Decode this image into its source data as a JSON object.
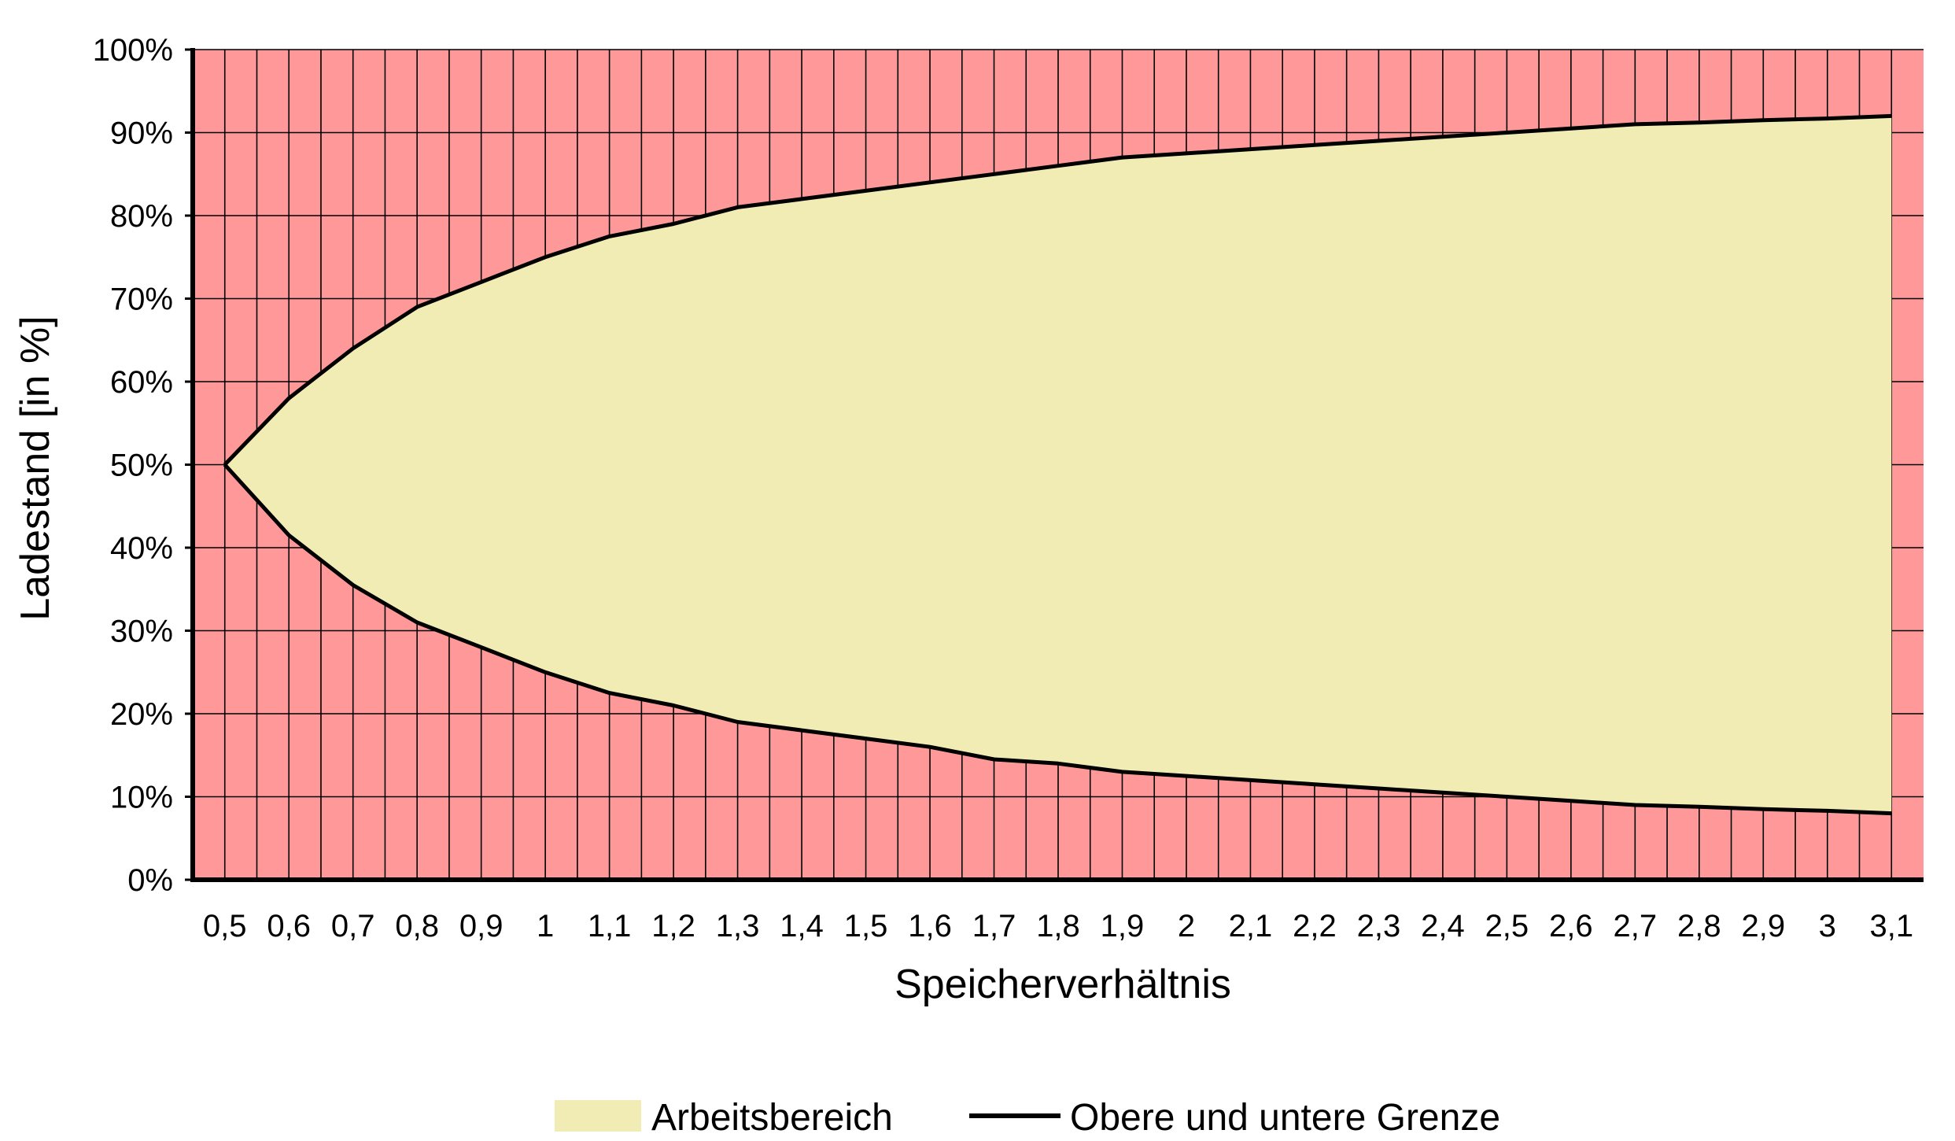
{
  "chart_data": {
    "type": "area",
    "xlabel": "Speicherverhältnis",
    "ylabel": "Ladestand [in %]",
    "x": [
      0.5,
      0.6,
      0.7,
      0.8,
      0.9,
      1.0,
      1.1,
      1.2,
      1.3,
      1.4,
      1.5,
      1.6,
      1.7,
      1.8,
      1.9,
      2.0,
      2.1,
      2.2,
      2.3,
      2.4,
      2.5,
      2.6,
      2.7,
      2.8,
      2.9,
      3.0,
      3.1
    ],
    "x_tick_labels": [
      "0,5",
      "0,6",
      "0,7",
      "0,8",
      "0,9",
      "1",
      "1,1",
      "1,2",
      "1,3",
      "1,4",
      "1,5",
      "1,6",
      "1,7",
      "1,8",
      "1,9",
      "2",
      "2,1",
      "2,2",
      "2,3",
      "2,4",
      "2,5",
      "2,6",
      "2,7",
      "2,8",
      "2,9",
      "3",
      "3,1"
    ],
    "y_tick_labels": [
      "0%",
      "10%",
      "20%",
      "30%",
      "40%",
      "50%",
      "60%",
      "70%",
      "80%",
      "90%",
      "100%"
    ],
    "ylim": [
      0,
      100
    ],
    "series": [
      {
        "name": "Arbeitsbereich",
        "color": "#F0ECB4",
        "upper": [
          50,
          58,
          64,
          69,
          72,
          75,
          77.5,
          79,
          81,
          82,
          83,
          84,
          85,
          86,
          87,
          87.5,
          88,
          88.5,
          89,
          89.5,
          90,
          90.5,
          91,
          91.2,
          91.5,
          91.7,
          92
        ],
        "lower": [
          50,
          41.5,
          35.5,
          31,
          28,
          25,
          22.5,
          21,
          19,
          18,
          17,
          16,
          14.5,
          14,
          13,
          12.5,
          12,
          11.5,
          11,
          10.5,
          10,
          9.5,
          9,
          8.8,
          8.5,
          8.3,
          8
        ]
      },
      {
        "name": "Obere und untere Grenze",
        "color": "#000000"
      }
    ],
    "background_color": "#FF9999",
    "grid": true,
    "legend_position": "bottom"
  }
}
